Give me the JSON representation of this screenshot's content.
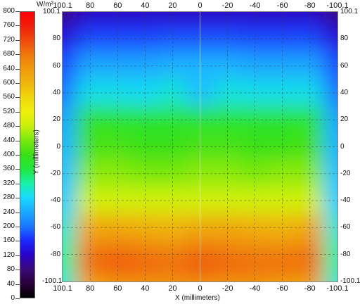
{
  "colorbar": {
    "unit": "W/m²",
    "ticks": [
      "800",
      "760",
      "720",
      "680",
      "640",
      "600",
      "560",
      "520",
      "480",
      "440",
      "400",
      "360",
      "320",
      "280",
      "240",
      "200",
      "160",
      "120",
      "80",
      "40",
      "0"
    ],
    "min": 0,
    "max": 800,
    "stops": [
      {
        "v": 0,
        "c": "#000000"
      },
      {
        "v": 40,
        "c": "#2a003a"
      },
      {
        "v": 80,
        "c": "#3a0a7a"
      },
      {
        "v": 120,
        "c": "#2a00c8"
      },
      {
        "v": 160,
        "c": "#1a2aff"
      },
      {
        "v": 200,
        "c": "#1a78ff"
      },
      {
        "v": 240,
        "c": "#1aa8ff"
      },
      {
        "v": 280,
        "c": "#19d9ff"
      },
      {
        "v": 320,
        "c": "#19f0a8"
      },
      {
        "v": 360,
        "c": "#20e840"
      },
      {
        "v": 400,
        "c": "#38e014"
      },
      {
        "v": 440,
        "c": "#78e810"
      },
      {
        "v": 480,
        "c": "#c8f00c"
      },
      {
        "v": 520,
        "c": "#f0f00c"
      },
      {
        "v": 560,
        "c": "#f0d80c"
      },
      {
        "v": 600,
        "c": "#f0b40c"
      },
      {
        "v": 640,
        "c": "#f09a0c"
      },
      {
        "v": 680,
        "c": "#f07a0c"
      },
      {
        "v": 720,
        "c": "#f04a0c"
      },
      {
        "v": 760,
        "c": "#f0200c"
      },
      {
        "v": 800,
        "c": "#ff0000"
      }
    ]
  },
  "axes": {
    "x_label": "X (millimeters)",
    "y_label": "Y (millimeters)",
    "x_ticks": [
      "100.1",
      "80",
      "60",
      "40",
      "20",
      "0",
      "-20",
      "-40",
      "-60",
      "-80",
      "-100.1"
    ],
    "x_tick_values": [
      100.1,
      80,
      60,
      40,
      20,
      0,
      -20,
      -40,
      -60,
      -80,
      -100.1
    ],
    "y_ticks": [
      "100.1",
      "80",
      "60",
      "40",
      "20",
      "0",
      "-20",
      "-40",
      "-60",
      "-80",
      "-100.1"
    ],
    "y_tick_values": [
      100.1,
      80,
      60,
      40,
      20,
      0,
      -20,
      -40,
      -60,
      -80,
      -100.1
    ],
    "x_range": [
      100.1,
      -100.1
    ],
    "y_range": [
      100.1,
      -100.1
    ]
  },
  "chart_data": {
    "type": "heatmap",
    "title": "",
    "xlabel": "X (millimeters)",
    "ylabel": "Y (millimeters)",
    "zlabel": "W/m²",
    "xlim": [
      100.1,
      -100.1
    ],
    "ylim": [
      -100.1,
      100.1
    ],
    "zlim": [
      0,
      800
    ],
    "grid": true,
    "x": [
      100.1,
      80,
      60,
      40,
      20,
      0,
      -20,
      -40,
      -60,
      -80,
      -100.1
    ],
    "y": [
      100.1,
      90,
      80,
      60,
      40,
      20,
      0,
      -20,
      -40,
      -60,
      -80,
      -90,
      -100.1
    ],
    "z": [
      [
        80,
        110,
        110,
        110,
        110,
        110,
        110,
        110,
        110,
        110,
        80
      ],
      [
        110,
        150,
        150,
        150,
        150,
        150,
        150,
        150,
        150,
        150,
        110
      ],
      [
        140,
        180,
        180,
        180,
        185,
        185,
        185,
        180,
        180,
        180,
        140
      ],
      [
        180,
        240,
        240,
        240,
        250,
        250,
        250,
        240,
        240,
        240,
        180
      ],
      [
        200,
        290,
        290,
        285,
        300,
        260,
        295,
        290,
        290,
        290,
        200
      ],
      [
        240,
        390,
        380,
        380,
        380,
        380,
        380,
        380,
        380,
        380,
        240
      ],
      [
        250,
        410,
        410,
        400,
        400,
        410,
        410,
        400,
        400,
        410,
        250
      ],
      [
        260,
        450,
        450,
        440,
        440,
        450,
        450,
        440,
        450,
        450,
        260
      ],
      [
        270,
        490,
        490,
        490,
        490,
        490,
        490,
        490,
        490,
        490,
        270
      ],
      [
        300,
        620,
        620,
        610,
        600,
        620,
        620,
        610,
        600,
        620,
        300
      ],
      [
        320,
        680,
        690,
        680,
        670,
        690,
        680,
        670,
        670,
        680,
        320
      ],
      [
        320,
        700,
        720,
        710,
        700,
        720,
        710,
        700,
        700,
        700,
        320
      ],
      [
        300,
        620,
        640,
        640,
        640,
        650,
        640,
        640,
        630,
        620,
        300
      ]
    ]
  }
}
